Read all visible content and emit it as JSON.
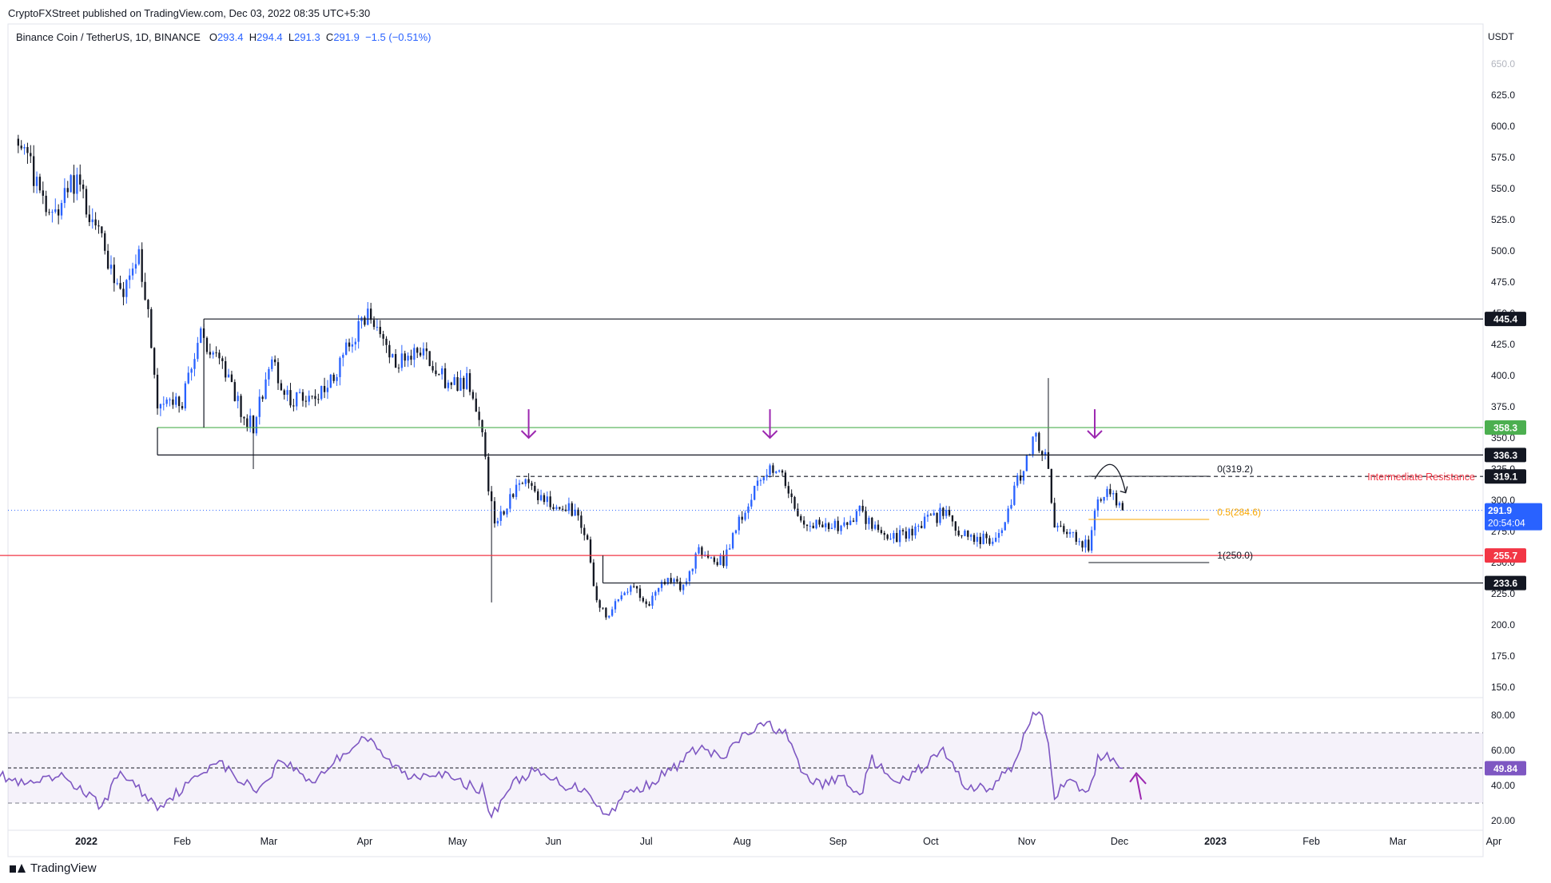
{
  "header": {
    "publisher": "CryptoFXStreet published on TradingView.com, Dec 03, 2022 08:35 UTC+5:30",
    "symbol": "Binance Coin / TetherUS, 1D, BINANCE",
    "ohlc": [
      {
        "key": "O",
        "value": "293.4"
      },
      {
        "key": "H",
        "value": "294.4"
      },
      {
        "key": "L",
        "value": "291.3"
      },
      {
        "key": "C",
        "value": "291.9"
      }
    ],
    "change": "−1.5 (−0.51%)"
  },
  "footer": {
    "logo_text": "TradingView"
  },
  "colors": {
    "bull": "#2962ff",
    "bear": "#131722",
    "green_line": "#4caf50",
    "red_line": "#f23645",
    "arrow": "#9c27b0",
    "rsi": "#7e57c2",
    "fib_mid": "#f7a600"
  },
  "chart_data": [
    {
      "type": "candlestick",
      "currency_label": "USDT",
      "ylim": [
        140,
        660
      ],
      "x_ticks": [
        "2022",
        "Feb",
        "Mar",
        "Apr",
        "May",
        "Jun",
        "Jul",
        "Aug",
        "Sep",
        "Oct",
        "Nov",
        "Dec",
        "2023",
        "Feb",
        "Mar",
        "Apr"
      ],
      "y_ticks": [
        "150.0",
        "175.0",
        "200.0",
        "225.0",
        "250.0",
        "275.0",
        "300.0",
        "325.0",
        "350.0",
        "375.0",
        "400.0",
        "425.0",
        "450.0",
        "475.0",
        "500.0",
        "525.0",
        "550.0",
        "575.0",
        "600.0",
        "625.0",
        "650.0"
      ],
      "price_keypoints": [
        {
          "date": "2021-12-10",
          "price": 590
        },
        {
          "date": "2021-12-15",
          "price": 560
        },
        {
          "date": "2021-12-22",
          "price": 525
        },
        {
          "date": "2021-12-28",
          "price": 555
        },
        {
          "date": "2022-01-05",
          "price": 520
        },
        {
          "date": "2022-01-10",
          "price": 470
        },
        {
          "date": "2022-01-13",
          "price": 460
        },
        {
          "date": "2022-01-18",
          "price": 500
        },
        {
          "date": "2022-01-21",
          "price": 450
        },
        {
          "date": "2022-01-24",
          "price": 370
        },
        {
          "date": "2022-02-01",
          "price": 380
        },
        {
          "date": "2022-02-07",
          "price": 430
        },
        {
          "date": "2022-02-14",
          "price": 410
        },
        {
          "date": "2022-02-20",
          "price": 370
        },
        {
          "date": "2022-02-24",
          "price": 360
        },
        {
          "date": "2022-03-02",
          "price": 410
        },
        {
          "date": "2022-03-08",
          "price": 380
        },
        {
          "date": "2022-03-15",
          "price": 380
        },
        {
          "date": "2022-03-22",
          "price": 400
        },
        {
          "date": "2022-03-28",
          "price": 430
        },
        {
          "date": "2022-04-02",
          "price": 445
        },
        {
          "date": "2022-04-07",
          "price": 425
        },
        {
          "date": "2022-04-12",
          "price": 410
        },
        {
          "date": "2022-04-20",
          "price": 420
        },
        {
          "date": "2022-04-27",
          "price": 395
        },
        {
          "date": "2022-05-04",
          "price": 395
        },
        {
          "date": "2022-05-08",
          "price": 370
        },
        {
          "date": "2022-05-11",
          "price": 310
        },
        {
          "date": "2022-05-13",
          "price": 280
        },
        {
          "date": "2022-05-18",
          "price": 300
        },
        {
          "date": "2022-05-24",
          "price": 320
        },
        {
          "date": "2022-05-28",
          "price": 300
        },
        {
          "date": "2022-06-03",
          "price": 295
        },
        {
          "date": "2022-06-08",
          "price": 290
        },
        {
          "date": "2022-06-12",
          "price": 265
        },
        {
          "date": "2022-06-15",
          "price": 220
        },
        {
          "date": "2022-06-18",
          "price": 205
        },
        {
          "date": "2022-06-22",
          "price": 220
        },
        {
          "date": "2022-06-27",
          "price": 230
        },
        {
          "date": "2022-07-01",
          "price": 215
        },
        {
          "date": "2022-07-08",
          "price": 240
        },
        {
          "date": "2022-07-13",
          "price": 230
        },
        {
          "date": "2022-07-18",
          "price": 260
        },
        {
          "date": "2022-07-26",
          "price": 250
        },
        {
          "date": "2022-08-01",
          "price": 290
        },
        {
          "date": "2022-08-08",
          "price": 320
        },
        {
          "date": "2022-08-12",
          "price": 325
        },
        {
          "date": "2022-08-16",
          "price": 310
        },
        {
          "date": "2022-08-20",
          "price": 285
        },
        {
          "date": "2022-08-26",
          "price": 280
        },
        {
          "date": "2022-09-01",
          "price": 280
        },
        {
          "date": "2022-09-08",
          "price": 290
        },
        {
          "date": "2022-09-14",
          "price": 275
        },
        {
          "date": "2022-09-20",
          "price": 270
        },
        {
          "date": "2022-09-28",
          "price": 280
        },
        {
          "date": "2022-10-05",
          "price": 290
        },
        {
          "date": "2022-10-10",
          "price": 275
        },
        {
          "date": "2022-10-15",
          "price": 270
        },
        {
          "date": "2022-10-20",
          "price": 270
        },
        {
          "date": "2022-10-25",
          "price": 280
        },
        {
          "date": "2022-10-29",
          "price": 315
        },
        {
          "date": "2022-11-03",
          "price": 350
        },
        {
          "date": "2022-11-07",
          "price": 340
        },
        {
          "date": "2022-11-09",
          "price": 300
        },
        {
          "date": "2022-11-10",
          "price": 280
        },
        {
          "date": "2022-11-14",
          "price": 270
        },
        {
          "date": "2022-11-18",
          "price": 270
        },
        {
          "date": "2022-11-21",
          "price": 260
        },
        {
          "date": "2022-11-23",
          "price": 295
        },
        {
          "date": "2022-11-26",
          "price": 305
        },
        {
          "date": "2022-11-29",
          "price": 300
        },
        {
          "date": "2022-12-02",
          "price": 292
        }
      ],
      "spikes": [
        {
          "date": "2022-05-12",
          "low": 218
        },
        {
          "date": "2022-11-08",
          "high": 398
        },
        {
          "date": "2022-02-24",
          "low": 325
        }
      ],
      "annotations": {
        "horizontal_levels": [
          {
            "price": 445.4,
            "label": "445.4",
            "color": "#131722",
            "from": "2022-02-08"
          },
          {
            "price": 358.3,
            "label": "358.3",
            "color": "#4caf50",
            "from": "2022-01-24"
          },
          {
            "price": 336.3,
            "label": "336.3",
            "color": "#131722",
            "from": "2022-01-24"
          },
          {
            "price": 319.1,
            "label": "319.1",
            "color": "#131722",
            "dashed": true,
            "from": "2022-05-20"
          },
          {
            "price": 255.7,
            "label": "255.7",
            "color": "#f23645",
            "from": "2021-12-01"
          },
          {
            "price": 233.6,
            "label": "233.6",
            "color": "#131722",
            "from": "2022-06-17"
          }
        ],
        "current_price": {
          "label": "291.9",
          "countdown": "20:54:04"
        },
        "intermediate_resistance_label": "Intermediate Resistance",
        "fibonacci": [
          {
            "level": 319.2,
            "label": "0(319.2)",
            "color": "#131722"
          },
          {
            "level": 284.6,
            "label": "0.5(284.6)",
            "color": "#f7a600"
          },
          {
            "level": 250.0,
            "label": "1(250.0)",
            "color": "#131722"
          }
        ],
        "down_arrows": [
          "2022-05-24",
          "2022-08-10",
          "2022-11-23"
        ]
      }
    },
    {
      "type": "line",
      "name": "RSI",
      "ylim": [
        15,
        90
      ],
      "y_ticks": [
        "20.00",
        "40.00",
        "60.00",
        "80.00"
      ],
      "bands": [
        30,
        70
      ],
      "midline": 50,
      "last_value": "49.84",
      "keypoints": [
        {
          "date": "2021-12-01",
          "value": 48
        },
        {
          "date": "2021-12-12",
          "value": 40
        },
        {
          "date": "2021-12-25",
          "value": 45
        },
        {
          "date": "2022-01-06",
          "value": 28
        },
        {
          "date": "2022-01-12",
          "value": 48
        },
        {
          "date": "2022-01-24",
          "value": 28
        },
        {
          "date": "2022-02-04",
          "value": 42
        },
        {
          "date": "2022-02-12",
          "value": 55
        },
        {
          "date": "2022-02-20",
          "value": 42
        },
        {
          "date": "2022-02-26",
          "value": 38
        },
        {
          "date": "2022-03-05",
          "value": 55
        },
        {
          "date": "2022-03-15",
          "value": 42
        },
        {
          "date": "2022-03-25",
          "value": 58
        },
        {
          "date": "2022-04-01",
          "value": 68
        },
        {
          "date": "2022-04-08",
          "value": 55
        },
        {
          "date": "2022-04-15",
          "value": 45
        },
        {
          "date": "2022-04-24",
          "value": 48
        },
        {
          "date": "2022-05-01",
          "value": 42
        },
        {
          "date": "2022-05-09",
          "value": 38
        },
        {
          "date": "2022-05-12",
          "value": 22
        },
        {
          "date": "2022-05-18",
          "value": 40
        },
        {
          "date": "2022-05-25",
          "value": 48
        },
        {
          "date": "2022-06-05",
          "value": 40
        },
        {
          "date": "2022-06-12",
          "value": 38
        },
        {
          "date": "2022-06-18",
          "value": 22
        },
        {
          "date": "2022-06-24",
          "value": 35
        },
        {
          "date": "2022-07-01",
          "value": 40
        },
        {
          "date": "2022-07-10",
          "value": 50
        },
        {
          "date": "2022-07-18",
          "value": 62
        },
        {
          "date": "2022-07-26",
          "value": 55
        },
        {
          "date": "2022-08-01",
          "value": 68
        },
        {
          "date": "2022-08-09",
          "value": 75
        },
        {
          "date": "2022-08-15",
          "value": 70
        },
        {
          "date": "2022-08-20",
          "value": 48
        },
        {
          "date": "2022-08-26",
          "value": 40
        },
        {
          "date": "2022-09-03",
          "value": 45
        },
        {
          "date": "2022-09-08",
          "value": 33
        },
        {
          "date": "2022-09-12",
          "value": 55
        },
        {
          "date": "2022-09-20",
          "value": 40
        },
        {
          "date": "2022-09-28",
          "value": 50
        },
        {
          "date": "2022-10-05",
          "value": 60
        },
        {
          "date": "2022-10-12",
          "value": 40
        },
        {
          "date": "2022-10-20",
          "value": 38
        },
        {
          "date": "2022-10-28",
          "value": 52
        },
        {
          "date": "2022-11-02",
          "value": 78
        },
        {
          "date": "2022-11-05",
          "value": 83
        },
        {
          "date": "2022-11-08",
          "value": 65
        },
        {
          "date": "2022-11-10",
          "value": 35
        },
        {
          "date": "2022-11-15",
          "value": 42
        },
        {
          "date": "2022-11-21",
          "value": 35
        },
        {
          "date": "2022-11-24",
          "value": 55
        },
        {
          "date": "2022-11-27",
          "value": 58
        },
        {
          "date": "2022-12-01",
          "value": 52
        },
        {
          "date": "2022-12-02",
          "value": 49.84
        }
      ]
    }
  ]
}
